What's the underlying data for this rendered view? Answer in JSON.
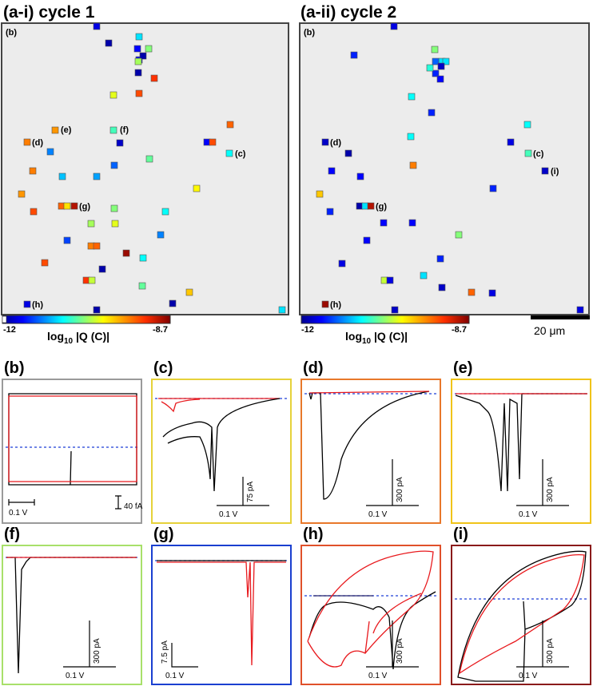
{
  "maps": {
    "panel1_title": "(a-i) cycle 1",
    "panel2_title": "(a-ii) cycle 2",
    "corner_label": "(b)",
    "colorbar": {
      "min_label": "-12",
      "max_label": "-8.7",
      "title_prefix": "log",
      "title_sub": "10",
      "title_rest": " |Q (C)|",
      "min": -12,
      "max": -8.7
    },
    "scalebar_label": "20 μm",
    "colors": {
      "map_bg": "#ececec",
      "frame": "#444444"
    }
  },
  "chart_data": [
    {
      "type": "scatter",
      "title": "(a-i) cycle 1",
      "description_units": "spots coloured by log10|Q (C)|",
      "points": [
        {
          "v": -11.7
        },
        {
          "v": -11.9
        },
        {
          "v": -10.9
        },
        {
          "v": -11.6
        },
        {
          "v": -10.4
        },
        {
          "v": -11.6
        },
        {
          "v": -11.9
        },
        {
          "v": -9.2
        },
        {
          "v": -11.9
        },
        {
          "v": -10.3
        },
        {
          "v": -10.1
        },
        {
          "v": -9.3
        },
        {
          "v": -9.6
        },
        {
          "v": -10.6
        },
        {
          "v": -11.8
        },
        {
          "v": -9.5
        },
        {
          "v": -11.2
        },
        {
          "v": -10.5
        },
        {
          "v": -11.3
        },
        {
          "v": -9.4
        },
        {
          "v": -11.6
        },
        {
          "v": -9.3
        },
        {
          "v": -10.8
        },
        {
          "v": -9.5
        },
        {
          "v": -11.0
        },
        {
          "v": -11.1
        },
        {
          "v": -10.0
        },
        {
          "v": -9.6
        },
        {
          "v": -9.4
        },
        {
          "v": -9.9
        },
        {
          "v": -8.9
        },
        {
          "v": -9.3
        },
        {
          "v": -10.4
        },
        {
          "v": -10.8
        },
        {
          "v": -10.3
        },
        {
          "v": -10.1
        },
        {
          "v": -11.2
        },
        {
          "v": -11.4
        },
        {
          "v": -9.5
        },
        {
          "v": -9.4
        },
        {
          "v": -10.8
        },
        {
          "v": -9.3
        },
        {
          "v": -11.9
        },
        {
          "v": -8.8
        },
        {
          "v": -9.2
        },
        {
          "v": -10.2
        },
        {
          "v": -10.5
        },
        {
          "v": -9.8
        },
        {
          "v": -11.9
        }
      ],
      "labels": [
        "(c)",
        "(d)",
        "(e)",
        "(f)",
        "(g)",
        "(h)"
      ]
    },
    {
      "type": "scatter",
      "title": "(a-ii) cycle 2",
      "description_units": "spots coloured by log10|Q (C)|",
      "points": [
        {
          "v": -11.7
        },
        {
          "v": -10.4
        },
        {
          "v": -10.9
        },
        {
          "v": -10.9
        },
        {
          "v": -11.5
        },
        {
          "v": -10.7
        },
        {
          "v": -11.3
        },
        {
          "v": -11.8
        },
        {
          "v": -11.5
        },
        {
          "v": -11.6
        },
        {
          "v": -10.8
        },
        {
          "v": -11.5
        },
        {
          "v": -10.8
        },
        {
          "v": -10.8
        },
        {
          "v": -11.7
        },
        {
          "v": -11.8
        },
        {
          "v": -11.9
        },
        {
          "v": -10.6
        },
        {
          "v": -11.8
        },
        {
          "v": -9.5
        },
        {
          "v": -11.6
        },
        {
          "v": -11.6
        },
        {
          "v": -11.5
        },
        {
          "v": -9.8
        },
        {
          "v": -11.9
        },
        {
          "v": -10.9
        },
        {
          "v": -8.9
        },
        {
          "v": -11.5
        },
        {
          "v": -11.6
        },
        {
          "v": -11.6
        },
        {
          "v": -10.4
        },
        {
          "v": -11.6
        },
        {
          "v": -11.7
        },
        {
          "v": -11.5
        },
        {
          "v": -10.9
        },
        {
          "v": -10.2
        },
        {
          "v": -11.7
        },
        {
          "v": -11.8
        },
        {
          "v": -9.4
        },
        {
          "v": -11.7
        },
        {
          "v": -8.8
        },
        {
          "v": -11.8
        },
        {
          "v": -11.7
        }
      ],
      "labels": [
        "(c)",
        "(d)",
        "(g)",
        "(h)",
        "(i)"
      ]
    },
    {
      "type": "line",
      "panels": [
        {
          "label": "(b)",
          "x_scale": "0.1 V",
          "y_scale": "40 fA",
          "border": "#9a9a9a"
        },
        {
          "label": "(c)",
          "x_scale": "0.1 V",
          "y_scale": "75 pA",
          "border": "#e6d23a"
        },
        {
          "label": "(d)",
          "x_scale": "0.1 V",
          "y_scale": "300 pA",
          "border": "#e8782a"
        },
        {
          "label": "(e)",
          "x_scale": "0.1 V",
          "y_scale": "300 pA",
          "border": "#f0c419"
        },
        {
          "label": "(f)",
          "x_scale": "0.1 V",
          "y_scale": "300 pA",
          "border": "#a8e06a"
        },
        {
          "label": "(g)",
          "x_scale": "0.1 V",
          "y_scale": "7.5 pA",
          "border": "#1a3fd0"
        },
        {
          "label": "(h)",
          "x_scale": "0.1 V",
          "y_scale": "300 pA",
          "border": "#e0502a"
        },
        {
          "label": "(i)",
          "x_scale": "0.1 V",
          "y_scale": "300 pA",
          "border": "#8a1a1a"
        }
      ],
      "series": [
        {
          "name": "",
          "color": "#000000"
        },
        {
          "name": "",
          "color": "#e8191d"
        }
      ]
    }
  ]
}
